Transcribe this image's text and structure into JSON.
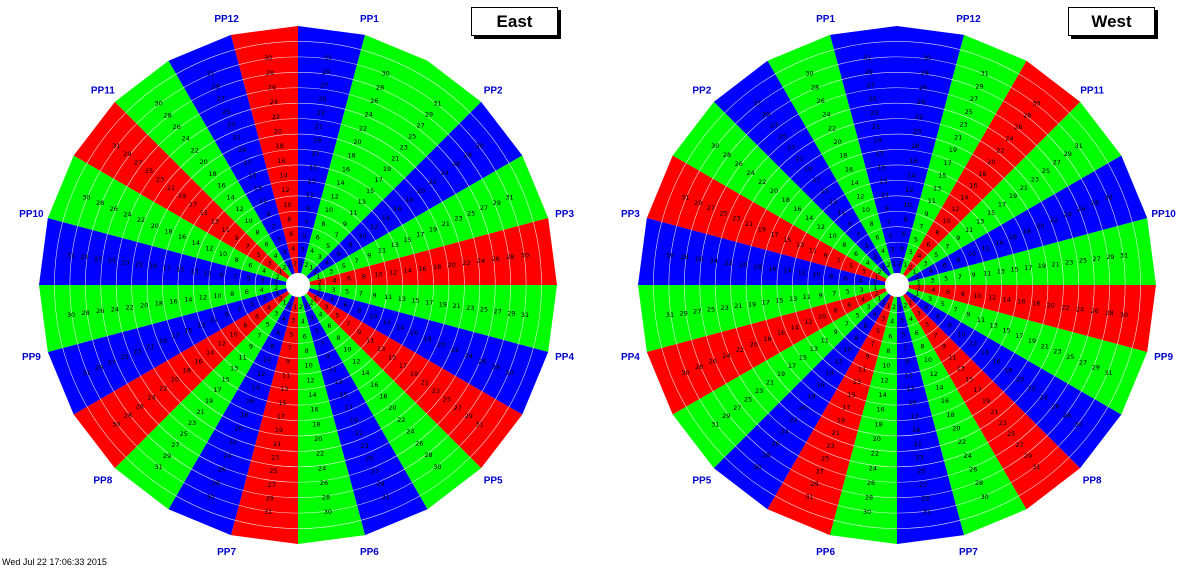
{
  "colors": {
    "red": "#ff0000",
    "green": "#00ff00",
    "blue": "#0000ff",
    "label": "#0000cc",
    "ring": "#ffffff"
  },
  "wheels": [
    {
      "id": "east",
      "title": "East",
      "direction": "cw",
      "labels": [
        "PP1",
        "PP2",
        "PP3",
        "PP4",
        "PP5",
        "PP6",
        "PP7",
        "PP8",
        "PP9",
        "PP10",
        "PP11",
        "PP12"
      ],
      "sector_colors": [
        "blue",
        "green",
        "green",
        "blue",
        "green",
        "red",
        "green",
        "blue",
        "red",
        "green",
        "blue",
        "green",
        "red",
        "blue",
        "green",
        "red",
        "blue",
        "green",
        "blue",
        "green",
        "red",
        "green",
        "blue",
        "red"
      ]
    },
    {
      "id": "west",
      "title": "West",
      "direction": "ccw",
      "labels": [
        "PP1",
        "PP2",
        "PP3",
        "PP4",
        "PP5",
        "PP6",
        "PP7",
        "PP8",
        "PP9",
        "PP10",
        "PP11",
        "PP12"
      ],
      "sector_colors": [
        "blue",
        "green",
        "blue",
        "green",
        "red",
        "blue",
        "green",
        "red",
        "green",
        "blue",
        "red",
        "green",
        "blue",
        "green",
        "red",
        "blue",
        "green",
        "red",
        "green",
        "blue",
        "green",
        "red",
        "green",
        "blue"
      ]
    }
  ],
  "odd_rows": [
    "1",
    "3",
    "5",
    "7",
    "9",
    "11",
    "13",
    "15",
    "17",
    "19",
    "21",
    "23",
    "25",
    "27",
    "29",
    "31"
  ],
  "even_rows": [
    "2",
    "4",
    "6",
    "8",
    "10",
    "12",
    "14",
    "16",
    "18",
    "20",
    "22",
    "24",
    "26",
    "28",
    "30"
  ],
  "footer_text": "Wed Jul 22 17:06:33 2015"
}
